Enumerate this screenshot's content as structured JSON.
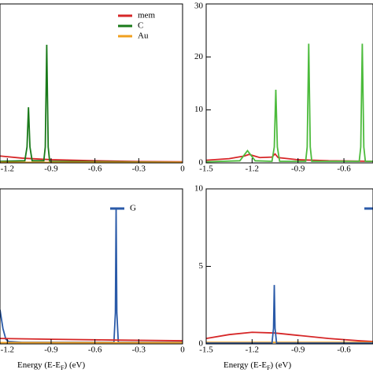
{
  "chart_data": [
    {
      "type": "line",
      "xlim": [
        -1.25,
        0
      ],
      "ylim": [
        0,
        30
      ],
      "xticks": [
        -1.2,
        -0.9,
        -0.6,
        -0.3,
        0
      ],
      "legend": "upper right",
      "series": [
        {
          "name": "mem",
          "color": "#d62728",
          "x": [
            -1.25,
            -1.1,
            -0.9,
            -0.6,
            -0.3,
            0
          ],
          "values": [
            1.3,
            0.9,
            0.6,
            0.4,
            0.25,
            0.2
          ]
        },
        {
          "name": "C",
          "color": "#1a7a1a",
          "x": [
            -1.25,
            -1.08,
            -1.065,
            -1.055,
            -1.045,
            -1.03,
            -0.95,
            -0.94,
            -0.93,
            -0.92,
            -0.91,
            0
          ],
          "values": [
            0.3,
            0.4,
            3,
            10.5,
            3,
            0.4,
            0.4,
            3,
            22.3,
            3,
            0.3,
            0.1
          ]
        },
        {
          "name": "Au",
          "color": "#f0a020",
          "x": [
            -1.25,
            0
          ],
          "values": [
            0.1,
            0.1
          ]
        }
      ]
    },
    {
      "type": "line",
      "xlim": [
        -1.5,
        -0.41
      ],
      "ylim": [
        0,
        30
      ],
      "xticks": [
        -1.5,
        -1.2,
        -0.9,
        -0.6
      ],
      "yticks": [
        0,
        10,
        20,
        30
      ],
      "series": [
        {
          "color": "#d62728",
          "x": [
            -1.5,
            -1.35,
            -1.25,
            -1.22,
            -1.15,
            -1.07,
            -1.05,
            -1.03,
            -0.9,
            -0.7,
            -0.41
          ],
          "values": [
            0.5,
            0.8,
            1.3,
            1.6,
            1.0,
            1.1,
            1.7,
            1.0,
            0.6,
            0.4,
            0.3
          ]
        },
        {
          "color": "#4cbb3c",
          "x": [
            -1.5,
            -1.28,
            -1.23,
            -1.18,
            -1.07,
            -1.055,
            -1.045,
            -1.035,
            -1.02,
            -0.85,
            -0.84,
            -0.83,
            -0.82,
            -0.81,
            -0.5,
            -0.49,
            -0.48,
            -0.47,
            -0.46,
            -0.41
          ],
          "values": [
            0.2,
            0.4,
            2.3,
            0.4,
            0.3,
            3,
            13.8,
            3,
            0.3,
            0.3,
            3,
            22.5,
            3,
            0.3,
            0.3,
            3,
            22.5,
            3,
            0.3,
            0.3
          ]
        }
      ]
    },
    {
      "type": "line",
      "xlim": [
        -1.25,
        0
      ],
      "ylim": [
        0,
        10
      ],
      "xticks": [
        -1.2,
        -0.9,
        -0.6,
        -0.3,
        0
      ],
      "legend": "upper right",
      "xlabel": [
        "Energy (E-E",
        "F",
        ") (eV)"
      ],
      "series": [
        {
          "name": "G",
          "color": "#2a5aa8",
          "x": [
            -1.25,
            -1.23,
            -1.21,
            -1.19,
            -1.1,
            -0.47,
            -0.46,
            -0.455,
            -0.45,
            -0.44,
            -0.43,
            0
          ],
          "values": [
            2.2,
            1.0,
            0.3,
            0.15,
            0.1,
            0.1,
            2,
            8.8,
            2,
            0.1,
            0.1,
            0.1
          ]
        },
        {
          "color": "#d62728",
          "x": [
            -1.25,
            -0.9,
            -0.5,
            0
          ],
          "values": [
            0.35,
            0.3,
            0.25,
            0.2
          ]
        },
        {
          "color": "#f0a020",
          "x": [
            -1.25,
            0
          ],
          "values": [
            0.08,
            0.08
          ]
        }
      ]
    },
    {
      "type": "line",
      "xlim": [
        -1.5,
        -0.41
      ],
      "ylim": [
        0,
        10
      ],
      "xticks": [
        -1.5,
        -1.2,
        -0.9,
        -0.6
      ],
      "yticks": [
        0,
        5,
        10
      ],
      "xlabel": [
        "Energy (E-E",
        "F",
        ") (eV)"
      ],
      "series": [
        {
          "color": "#d62728",
          "x": [
            -1.5,
            -1.35,
            -1.2,
            -1.05,
            -0.9,
            -0.7,
            -0.5,
            -0.41
          ],
          "values": [
            0.35,
            0.6,
            0.75,
            0.7,
            0.55,
            0.35,
            0.2,
            0.15
          ]
        },
        {
          "color": "#f0a020",
          "x": [
            -1.5,
            -0.41
          ],
          "values": [
            0.1,
            0.1
          ]
        },
        {
          "color": "#2a5aa8",
          "x": [
            -1.5,
            -1.07,
            -1.06,
            -1.055,
            -1.05,
            -1.04,
            -1.03,
            -0.41
          ],
          "values": [
            0.05,
            0.05,
            1,
            3.8,
            1,
            0.05,
            0.05,
            0.05
          ]
        }
      ]
    }
  ]
}
